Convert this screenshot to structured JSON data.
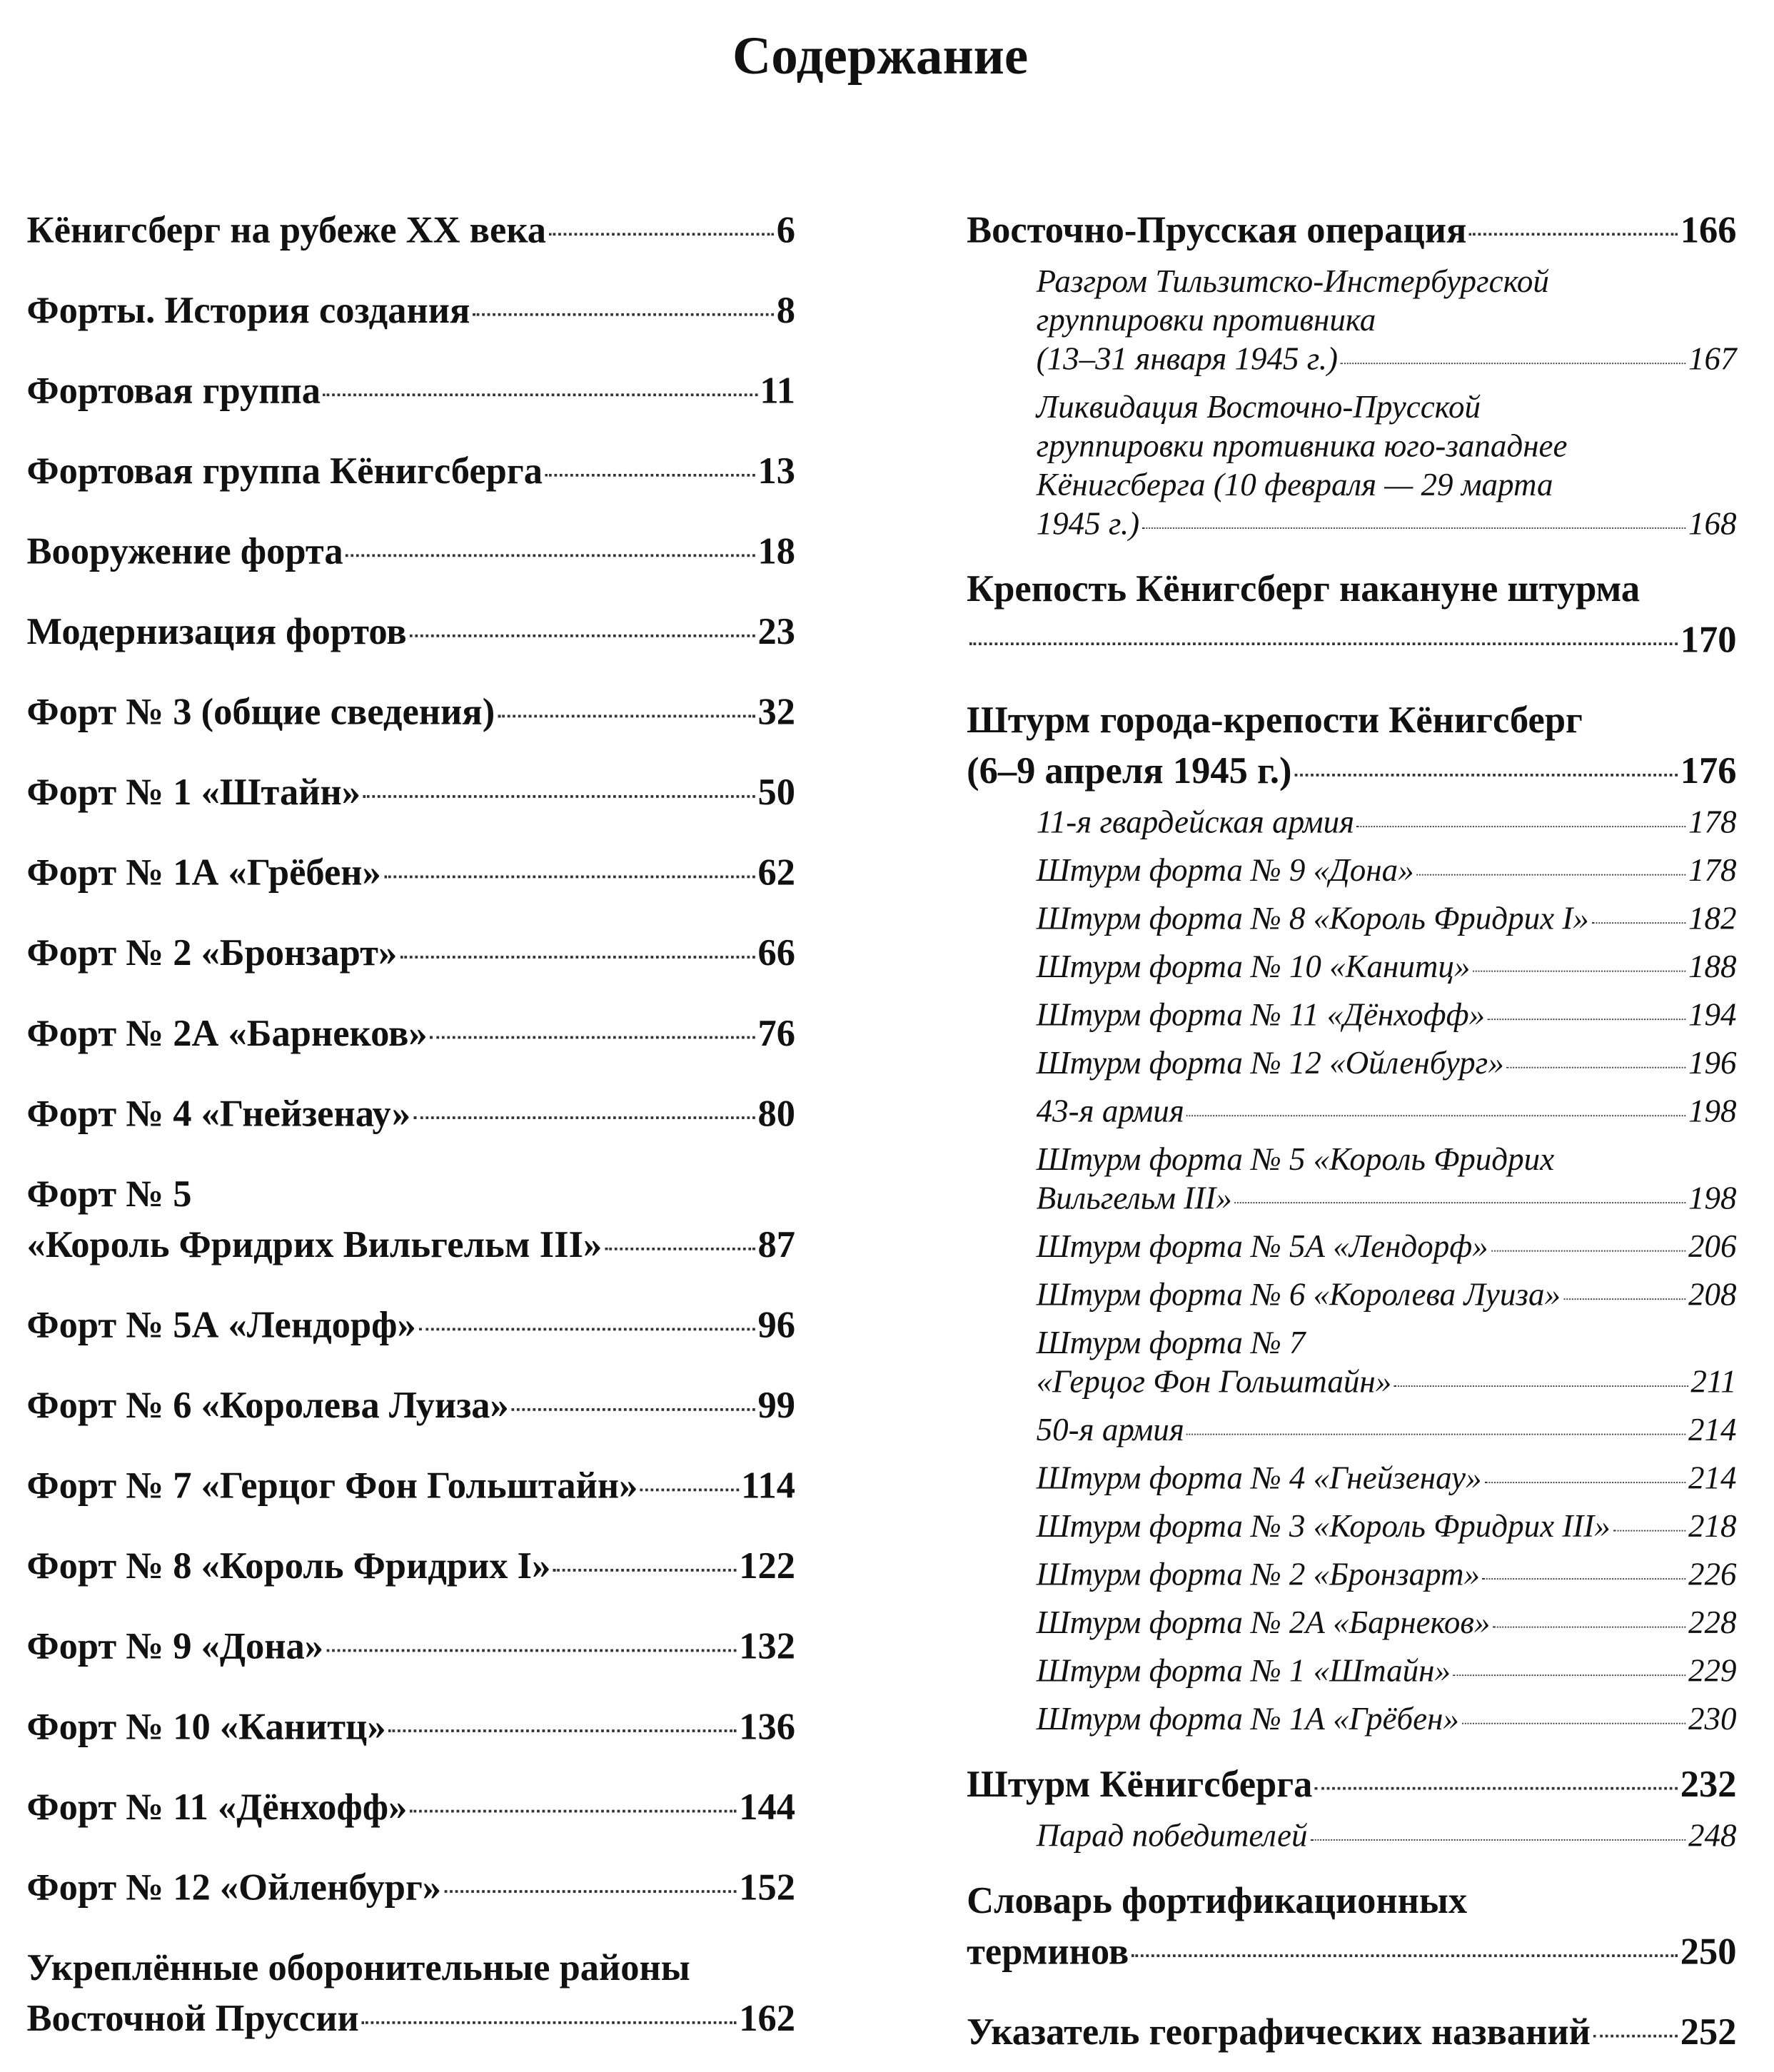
{
  "title": "Содержание",
  "left": [
    {
      "level": "main",
      "lines": [
        "Кёнигсберг на рубеже XX века"
      ],
      "page": "6"
    },
    {
      "level": "main",
      "lines": [
        "Форты. История создания"
      ],
      "page": "8"
    },
    {
      "level": "main",
      "lines": [
        "Фортовая группа"
      ],
      "page": "11"
    },
    {
      "level": "main",
      "lines": [
        "Фортовая группа Кёнигсберга"
      ],
      "page": "13"
    },
    {
      "level": "main",
      "lines": [
        "Вооружение форта"
      ],
      "page": "18"
    },
    {
      "level": "main",
      "lines": [
        "Модернизация фортов"
      ],
      "page": "23"
    },
    {
      "level": "main",
      "lines": [
        "Форт № 3 (общие сведения)"
      ],
      "page": "32"
    },
    {
      "level": "main",
      "lines": [
        "Форт № 1 «Штайн»"
      ],
      "page": "50"
    },
    {
      "level": "main",
      "lines": [
        "Форт № 1А «Грёбен»"
      ],
      "page": "62"
    },
    {
      "level": "main",
      "lines": [
        "Форт № 2 «Бронзарт»"
      ],
      "page": "66"
    },
    {
      "level": "main",
      "lines": [
        "Форт № 2А «Барнеков»"
      ],
      "page": "76"
    },
    {
      "level": "main",
      "lines": [
        "Форт № 4 «Гнейзенау»"
      ],
      "page": "80"
    },
    {
      "level": "main",
      "lines": [
        "Форт № 5",
        "«Король Фридрих Вильгельм III»"
      ],
      "page": "87"
    },
    {
      "level": "main",
      "lines": [
        "Форт № 5А «Лендорф»"
      ],
      "page": "96"
    },
    {
      "level": "main",
      "lines": [
        "Форт № 6 «Королева Луиза»"
      ],
      "page": "99"
    },
    {
      "level": "main",
      "lines": [
        "Форт № 7 «Герцог Фон Гольштайн»"
      ],
      "page": "114"
    },
    {
      "level": "main",
      "lines": [
        "Форт № 8 «Король Фридрих I»"
      ],
      "page": "122"
    },
    {
      "level": "main",
      "lines": [
        "Форт № 9 «Дона»"
      ],
      "page": "132"
    },
    {
      "level": "main",
      "lines": [
        "Форт № 10 «Канитц»"
      ],
      "page": "136"
    },
    {
      "level": "main",
      "lines": [
        "Форт № 11 «Дёнхофф»"
      ],
      "page": "144"
    },
    {
      "level": "main",
      "lines": [
        "Форт № 12 «Ойленбург»"
      ],
      "page": "152"
    },
    {
      "level": "main",
      "lines": [
        "Укреплённые оборонительные районы",
        "Восточной Пруссии"
      ],
      "page": "162"
    }
  ],
  "right": [
    {
      "level": "main",
      "lines": [
        "Восточно-Прусская операция"
      ],
      "page": "166"
    },
    {
      "level": "sub",
      "lines": [
        "Разгром Тильзитско-Инстербургской",
        "группировки противника",
        "(13–31 января 1945 г.)"
      ],
      "page": "167"
    },
    {
      "level": "sub",
      "lines": [
        "Ликвидация Восточно-Прусской",
        "группировки противника юго-западнее",
        "Кёнигсберга (10 февраля — 29 марта",
        "1945 г.)"
      ],
      "page": "168"
    },
    {
      "level": "main",
      "lines": [
        "Крепость Кёнигсберг накануне штурма",
        ""
      ],
      "page": "170"
    },
    {
      "level": "main",
      "lines": [
        "Штурм города-крепости Кёнигсберг",
        "(6–9 апреля 1945 г.)"
      ],
      "page": "176"
    },
    {
      "level": "sub",
      "lines": [
        "11-я гвардейская армия"
      ],
      "page": "178"
    },
    {
      "level": "sub",
      "lines": [
        "Штурм форта № 9 «Дона»"
      ],
      "page": "178"
    },
    {
      "level": "sub",
      "lines": [
        "Штурм форта № 8 «Король Фридрих I»"
      ],
      "page": "182"
    },
    {
      "level": "sub",
      "lines": [
        "Штурм форта № 10 «Канитц»"
      ],
      "page": "188"
    },
    {
      "level": "sub",
      "lines": [
        "Штурм форта № 11 «Дёнхофф»"
      ],
      "page": "194"
    },
    {
      "level": "sub",
      "lines": [
        "Штурм форта № 12 «Ойленбург»"
      ],
      "page": "196"
    },
    {
      "level": "sub",
      "lines": [
        "43-я армия"
      ],
      "page": "198"
    },
    {
      "level": "sub",
      "lines": [
        "Штурм форта № 5 «Король Фридрих",
        "Вильгельм III»"
      ],
      "page": "198"
    },
    {
      "level": "sub",
      "lines": [
        "Штурм форта № 5А «Лендорф»"
      ],
      "page": "206"
    },
    {
      "level": "sub",
      "lines": [
        "Штурм форта № 6 «Королева Луиза»"
      ],
      "page": "208"
    },
    {
      "level": "sub",
      "lines": [
        "Штурм форта № 7",
        "«Герцог Фон Гольштайн»"
      ],
      "page": "211"
    },
    {
      "level": "sub",
      "lines": [
        "50-я армия"
      ],
      "page": "214"
    },
    {
      "level": "sub",
      "lines": [
        "Штурм форта № 4 «Гнейзенау»"
      ],
      "page": "214"
    },
    {
      "level": "sub",
      "lines": [
        "Штурм форта № 3 «Король Фридрих III»"
      ],
      "page": "218"
    },
    {
      "level": "sub",
      "lines": [
        "Штурм форта № 2 «Бронзарт»"
      ],
      "page": "226"
    },
    {
      "level": "sub",
      "lines": [
        "Штурм форта № 2А «Барнеков»"
      ],
      "page": "228"
    },
    {
      "level": "sub",
      "lines": [
        "Штурм форта № 1 «Штайн»"
      ],
      "page": "229"
    },
    {
      "level": "sub",
      "lines": [
        "Штурм форта № 1А «Грёбен»"
      ],
      "page": "230"
    },
    {
      "level": "main",
      "lines": [
        "Штурм Кёнигсберга"
      ],
      "page": "232"
    },
    {
      "level": "sub",
      "lines": [
        "Парад победителей"
      ],
      "page": "248"
    },
    {
      "level": "main",
      "lines": [
        "Словарь фортификационных",
        "терминов"
      ],
      "page": "250"
    },
    {
      "level": "main",
      "lines": [
        "Указатель географических названий"
      ],
      "page": "252"
    }
  ]
}
